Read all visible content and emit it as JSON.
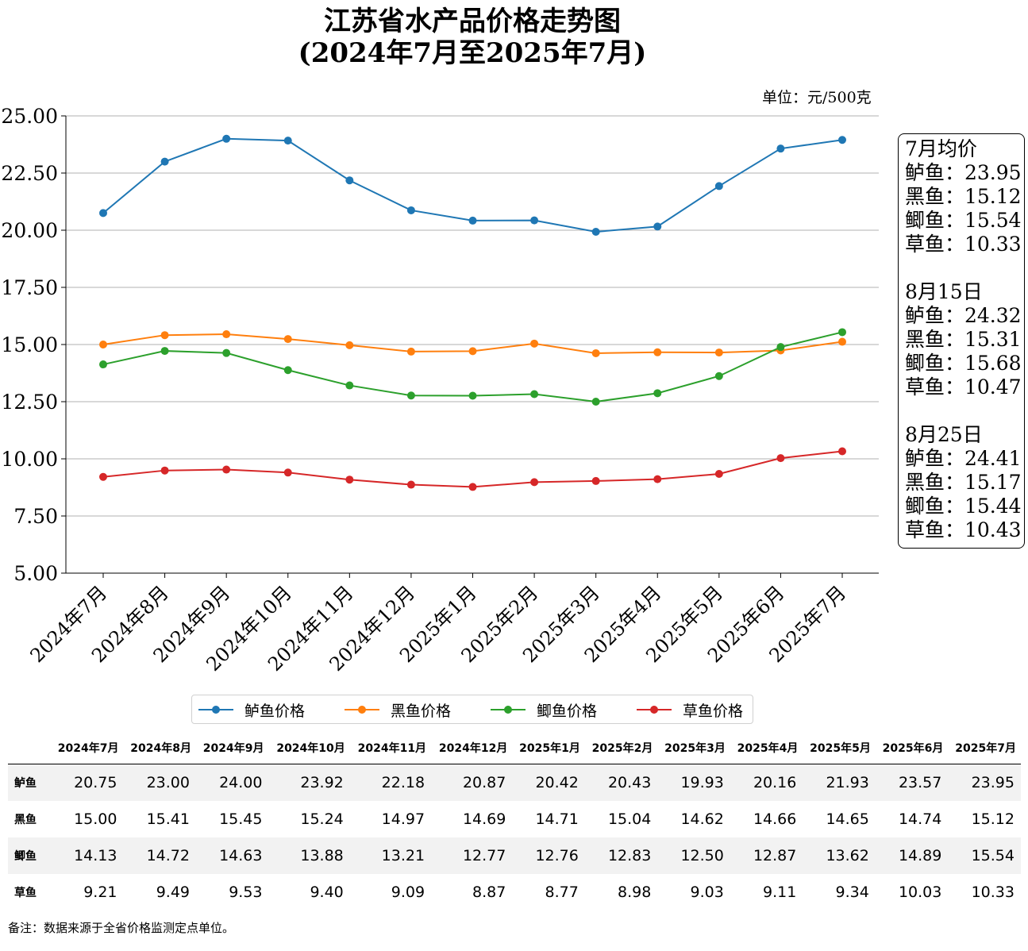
{
  "title": "江苏省水产品价格走势图",
  "subtitle": "(2024年7月至2025年7月)",
  "unit": "单位：元/500克",
  "colors": {
    "鲈鱼": "#1f77b4",
    "黑鱼": "#ff7f0e",
    "鲫鱼": "#2ca02c",
    "草鱼": "#d62728"
  },
  "chart_data": {
    "type": "line",
    "categories": [
      "2024年7月",
      "2024年8月",
      "2024年9月",
      "2024年10月",
      "2024年11月",
      "2024年12月",
      "2025年1月",
      "2025年2月",
      "2025年3月",
      "2025年4月",
      "2025年5月",
      "2025年6月",
      "2025年7月"
    ],
    "series": [
      {
        "name": "鲈鱼价格",
        "color": "#1f77b4",
        "values": [
          20.75,
          23.0,
          24.0,
          23.92,
          22.18,
          20.87,
          20.42,
          20.43,
          19.93,
          20.16,
          21.93,
          23.57,
          23.95
        ]
      },
      {
        "name": "黑鱼价格",
        "color": "#ff7f0e",
        "values": [
          15.0,
          15.41,
          15.45,
          15.24,
          14.97,
          14.69,
          14.71,
          15.04,
          14.62,
          14.66,
          14.65,
          14.74,
          15.12
        ]
      },
      {
        "name": "鲫鱼价格",
        "color": "#2ca02c",
        "values": [
          14.13,
          14.72,
          14.63,
          13.88,
          13.21,
          12.77,
          12.76,
          12.83,
          12.5,
          12.87,
          13.62,
          14.89,
          15.54
        ]
      },
      {
        "name": "草鱼价格",
        "color": "#d62728",
        "values": [
          9.21,
          9.49,
          9.53,
          9.4,
          9.09,
          8.87,
          8.77,
          8.98,
          9.03,
          9.11,
          9.34,
          10.03,
          10.33
        ]
      }
    ],
    "ylim": [
      5.0,
      25.0
    ],
    "yticks": [
      "5.00",
      "7.50",
      "10.00",
      "12.50",
      "15.00",
      "17.50",
      "20.00",
      "22.50",
      "25.00"
    ],
    "grid": "horizontal",
    "legend_position": "bottom"
  },
  "infobox": [
    {
      "heading": "7月均价",
      "rows": [
        "鲈鱼：23.95",
        "黑鱼：15.12",
        "鲫鱼：15.54",
        "草鱼：10.33"
      ]
    },
    {
      "heading": "8月15日",
      "rows": [
        "鲈鱼：24.32",
        "黑鱼：15.31",
        "鲫鱼：15.68",
        "草鱼：10.47"
      ]
    },
    {
      "heading": "8月25日",
      "rows": [
        "鲈鱼：24.41",
        "黑鱼：15.17",
        "鲫鱼：15.44",
        "草鱼：10.43"
      ]
    }
  ],
  "table": {
    "headers": [
      "2024年7月",
      "2024年8月",
      "2024年9月",
      "2024年10月",
      "2024年11月",
      "2024年12月",
      "2025年1月",
      "2025年2月",
      "2025年3月",
      "2025年4月",
      "2025年5月",
      "2025年6月",
      "2025年7月"
    ],
    "rows": [
      {
        "label": "鲈鱼",
        "values": [
          "20.75",
          "23.00",
          "24.00",
          "23.92",
          "22.18",
          "20.87",
          "20.42",
          "20.43",
          "19.93",
          "20.16",
          "21.93",
          "23.57",
          "23.95"
        ]
      },
      {
        "label": "黑鱼",
        "values": [
          "15.00",
          "15.41",
          "15.45",
          "15.24",
          "14.97",
          "14.69",
          "14.71",
          "15.04",
          "14.62",
          "14.66",
          "14.65",
          "14.74",
          "15.12"
        ]
      },
      {
        "label": "鲫鱼",
        "values": [
          "14.13",
          "14.72",
          "14.63",
          "13.88",
          "13.21",
          "12.77",
          "12.76",
          "12.83",
          "12.50",
          "12.87",
          "13.62",
          "14.89",
          "15.54"
        ]
      },
      {
        "label": "草鱼",
        "values": [
          "9.21",
          "9.49",
          "9.53",
          "9.40",
          "9.09",
          "8.87",
          "8.77",
          "8.98",
          "9.03",
          "9.11",
          "9.34",
          "10.03",
          "10.33"
        ]
      }
    ]
  },
  "note": "备注：数据来源于全省价格监测定点单位。"
}
